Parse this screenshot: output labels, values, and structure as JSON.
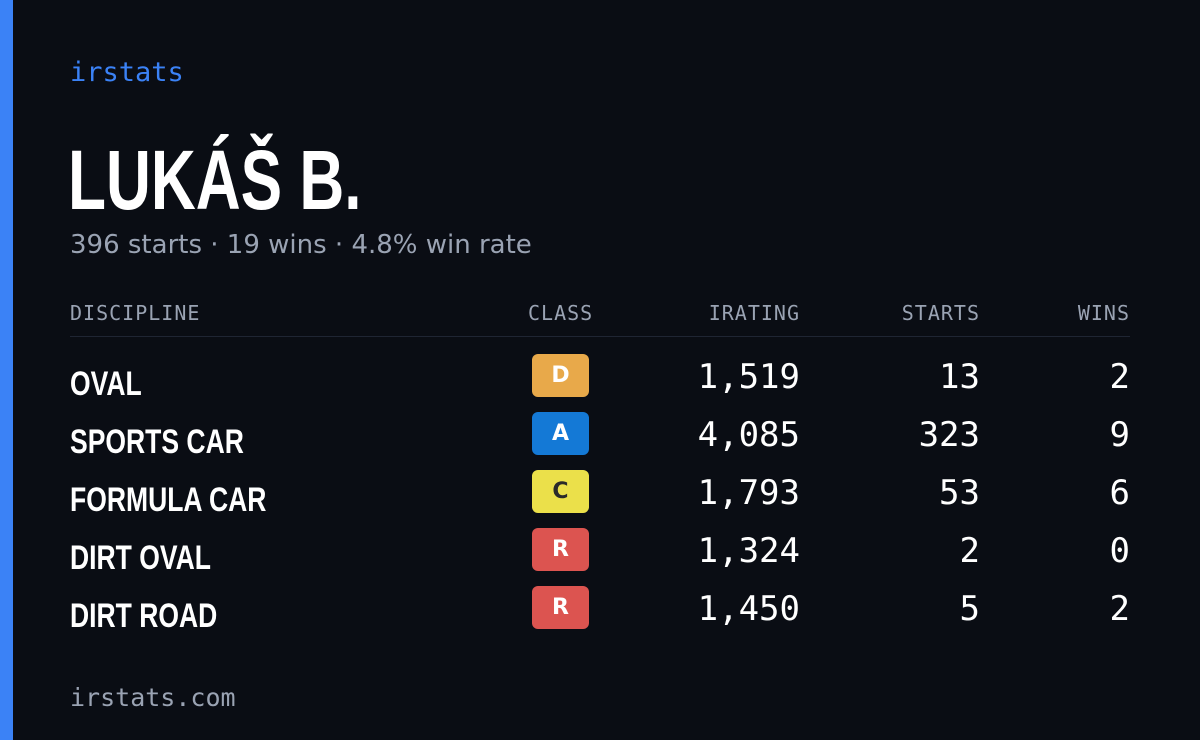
{
  "brand": "irstats",
  "player": {
    "name": "LUKÁŠ B.",
    "summary": "396 starts · 19 wins · 4.8% win rate"
  },
  "table": {
    "headers": {
      "discipline": "DISCIPLINE",
      "class": "CLASS",
      "irating": "IRATING",
      "starts": "STARTS",
      "wins": "WINS"
    },
    "rows": [
      {
        "discipline": "OVAL",
        "class": "D",
        "class_bg": "#e8a94a",
        "class_fg": "#ffffff",
        "irating": "1,519",
        "starts": "13",
        "wins": "2"
      },
      {
        "discipline": "SPORTS CAR",
        "class": "A",
        "class_bg": "#1479d6",
        "class_fg": "#ffffff",
        "irating": "4,085",
        "starts": "323",
        "wins": "9"
      },
      {
        "discipline": "FORMULA CAR",
        "class": "C",
        "class_bg": "#ebe04a",
        "class_fg": "#2a2a2a",
        "irating": "1,793",
        "starts": "53",
        "wins": "6"
      },
      {
        "discipline": "DIRT OVAL",
        "class": "R",
        "class_bg": "#dc5450",
        "class_fg": "#ffffff",
        "irating": "1,324",
        "starts": "2",
        "wins": "0"
      },
      {
        "discipline": "DIRT ROAD",
        "class": "R",
        "class_bg": "#dc5450",
        "class_fg": "#ffffff",
        "irating": "1,450",
        "starts": "5",
        "wins": "2"
      }
    ]
  },
  "footer": "irstats.com",
  "colors": {
    "accent": "#3b82f6",
    "background": "#0a0d14",
    "muted_text": "#9aa3b3"
  }
}
